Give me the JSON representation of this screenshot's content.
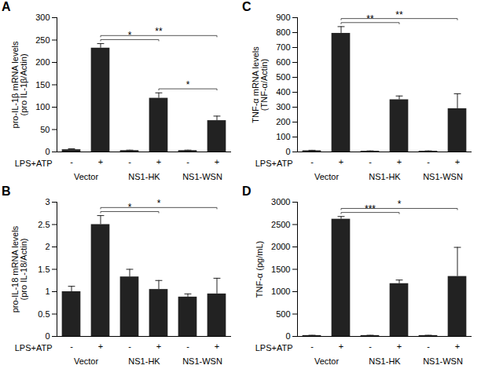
{
  "chart_data": [
    {
      "type": "bar",
      "title": "A",
      "ylabel": "pro-IL-1β mRNA levels\n(pro IL-1β/Actin)",
      "xlabel": "LPS+ATP",
      "categories": [
        "-",
        "+",
        "-",
        "+",
        "-",
        "+"
      ],
      "groups": [
        "Vector",
        "NS1-HK",
        "NS1-WSN"
      ],
      "values": [
        5,
        232,
        3,
        120,
        3,
        70
      ],
      "errors": [
        2,
        10,
        1,
        12,
        1,
        10
      ],
      "color": "#222222",
      "ylim": [
        0,
        300
      ],
      "yticks": [
        0,
        50,
        100,
        150,
        200,
        250,
        300
      ],
      "annotations": [
        {
          "from": 1,
          "to": 3,
          "text": "*"
        },
        {
          "from": 1,
          "to": 5,
          "text": "**"
        },
        {
          "from": 3,
          "to": 5,
          "text": "*"
        }
      ]
    },
    {
      "type": "bar",
      "title": "C",
      "ylabel": "TNF-α mRNA levels\n(TNF-α/Actin)",
      "xlabel": "LPS+ATP",
      "categories": [
        "-",
        "+",
        "-",
        "+",
        "-",
        "+"
      ],
      "groups": [
        "Vector",
        "NS1-HK",
        "NS1-WSN"
      ],
      "values": [
        8,
        795,
        5,
        350,
        5,
        290
      ],
      "errors": [
        3,
        45,
        2,
        25,
        2,
        100
      ],
      "color": "#222222",
      "ylim": [
        0,
        900
      ],
      "yticks": [
        0,
        100,
        200,
        300,
        400,
        500,
        600,
        700,
        800,
        900
      ],
      "annotations": [
        {
          "from": 1,
          "to": 3,
          "text": "**"
        },
        {
          "from": 1,
          "to": 5,
          "text": "**"
        }
      ]
    },
    {
      "type": "bar",
      "title": "B",
      "ylabel": "pro-IL-18 mRNA levels\n(pro IL-18/Actin)",
      "xlabel": "LPS+ATP",
      "categories": [
        "-",
        "+",
        "-",
        "+",
        "-",
        "+"
      ],
      "groups": [
        "Vector",
        "NS1-HK",
        "NS1-WSN"
      ],
      "values": [
        1.0,
        2.5,
        1.33,
        1.05,
        0.88,
        0.95
      ],
      "errors": [
        0.12,
        0.2,
        0.17,
        0.2,
        0.07,
        0.35
      ],
      "color": "#222222",
      "ylim": [
        0,
        3
      ],
      "yticks": [
        0,
        0.5,
        1,
        1.5,
        2,
        2.5,
        3
      ],
      "annotations": [
        {
          "from": 1,
          "to": 3,
          "text": "*"
        },
        {
          "from": 1,
          "to": 5,
          "text": "*"
        }
      ]
    },
    {
      "type": "bar",
      "title": "D",
      "ylabel": "TNF-α (pg/mL)",
      "xlabel": "LPS+ATP",
      "categories": [
        "-",
        "+",
        "-",
        "+",
        "-",
        "+"
      ],
      "groups": [
        "Vector",
        "NS1-HK",
        "NS1-WSN"
      ],
      "values": [
        20,
        2620,
        20,
        1180,
        20,
        1340
      ],
      "errors": [
        5,
        60,
        5,
        80,
        5,
        650
      ],
      "color": "#222222",
      "ylim": [
        0,
        3000
      ],
      "yticks": [
        0,
        500,
        1000,
        1500,
        2000,
        2500,
        3000
      ],
      "annotations": [
        {
          "from": 1,
          "to": 3,
          "text": "***"
        },
        {
          "from": 1,
          "to": 5,
          "text": "*"
        }
      ]
    }
  ]
}
